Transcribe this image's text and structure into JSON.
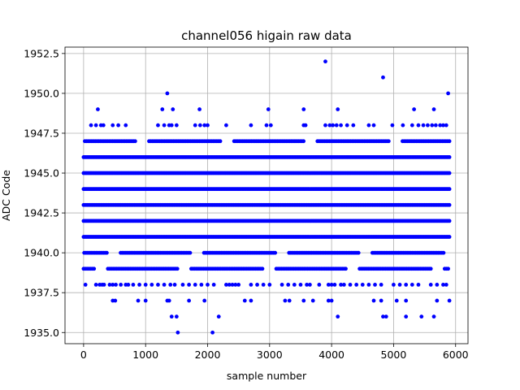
{
  "chart_data": {
    "type": "scatter",
    "title": "channel056 higain raw data",
    "xlabel": "sample number",
    "ylabel": "ADC Code",
    "xlim": [
      -300,
      6200
    ],
    "ylim": [
      1934.3,
      1952.9
    ],
    "xticks": [
      0,
      1000,
      2000,
      3000,
      4000,
      5000,
      6000
    ],
    "yticks": [
      1935.0,
      1937.5,
      1940.0,
      1942.5,
      1945.0,
      1947.5,
      1950.0,
      1952.5
    ],
    "xtick_labels": [
      "0",
      "1000",
      "2000",
      "3000",
      "4000",
      "5000",
      "6000"
    ],
    "ytick_labels": [
      "1935.0",
      "1937.5",
      "1940.0",
      "1942.5",
      "1945.0",
      "1947.5",
      "1950.0",
      "1952.5"
    ],
    "grid": true,
    "marker_color": "#0000ff",
    "x_range": [
      0,
      5900
    ],
    "dense_levels": [
      1941,
      1942,
      1943,
      1944,
      1945,
      1946
    ],
    "medium_levels": [
      1939,
      1940,
      1947
    ],
    "sparse_levels": {
      "1938": [
        30,
        200,
        260,
        300,
        330,
        420,
        470,
        520,
        600,
        680,
        720,
        800,
        900,
        1000,
        1100,
        1200,
        1300,
        1400,
        1470,
        1600,
        1700,
        1800,
        1900,
        2000,
        2100,
        2300,
        2350,
        2400,
        2450,
        2500,
        2700,
        2800,
        2900,
        3000,
        3200,
        3300,
        3400,
        3500,
        3600,
        3650,
        3800,
        3950,
        4000,
        4050,
        4150,
        4200,
        4300,
        4400,
        4500,
        4600,
        4700,
        4800,
        5000,
        5100,
        5200,
        5300,
        5400,
        5600,
        5700,
        5800,
        5850
      ],
      "1948": [
        120,
        200,
        280,
        320,
        470,
        560,
        680,
        1200,
        1300,
        1380,
        1420,
        1500,
        1800,
        1880,
        1950,
        2000,
        2300,
        2700,
        2950,
        3020,
        3550,
        3580,
        3900,
        3970,
        4020,
        4080,
        4150,
        4250,
        4350,
        4600,
        4680,
        4980,
        5150,
        5300,
        5400,
        5480,
        5550,
        5620,
        5680,
        5750,
        5800,
        5850
      ],
      "1949": [
        230,
        1270,
        1440,
        1870,
        2980,
        3550,
        4100,
        5330,
        5650
      ],
      "1937": [
        470,
        510,
        880,
        1000,
        1350,
        1380,
        1700,
        1950,
        2600,
        2700,
        3250,
        3320,
        3550,
        3700,
        3950,
        4000,
        4680,
        4800,
        5050,
        5200,
        5700,
        5900
      ],
      "1936": [
        1420,
        1500,
        2180,
        4100,
        4830,
        4880,
        5200,
        5450,
        5650
      ],
      "1935": [
        1520,
        2080
      ],
      "1950": [
        1350,
        5880
      ],
      "1951": [
        4830
      ],
      "1952": [
        3900
      ]
    }
  }
}
